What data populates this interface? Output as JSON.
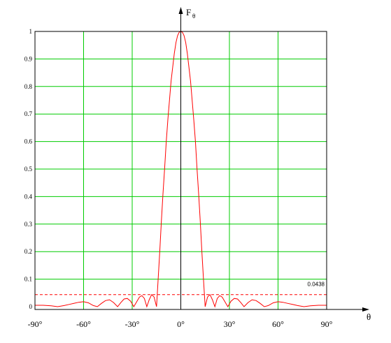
{
  "chart_data": {
    "type": "line",
    "ylabel": "F",
    "ylabel_sub": "θ",
    "xlabel": "θ",
    "xlim": [
      -90,
      90
    ],
    "ylim": [
      0,
      1
    ],
    "grid": true,
    "x_ticks": [
      -90,
      -60,
      -30,
      0,
      30,
      60,
      90
    ],
    "x_tick_labels": [
      "-90°",
      "-60°",
      "-30°",
      "0°",
      "30°",
      "60°",
      "90°"
    ],
    "y_ticks": [
      0,
      0.1,
      0.2,
      0.3,
      0.4,
      0.5,
      0.6,
      0.7,
      0.8,
      0.9,
      1
    ],
    "y_tick_labels": [
      "0",
      "0.1",
      "0.2",
      "0.3",
      "0.4",
      "0.5",
      "0.6",
      "0.7",
      "0.8",
      "0.9",
      "1"
    ],
    "colors": {
      "grid": "#00cc00",
      "curve": "#ff0000",
      "axis": "#000000",
      "frame": "#000000"
    },
    "series": [
      {
        "style": "solid",
        "x": [
          -90,
          -85,
          -80,
          -76,
          -72,
          -69,
          -66,
          -63,
          -60,
          -57,
          -54,
          -51.5,
          -49,
          -46.5,
          -44,
          -41.5,
          -39,
          -37,
          -35,
          -33,
          -31,
          -29,
          -27,
          -25.5,
          -24,
          -22.5,
          -21,
          -19.5,
          -18,
          -16.5,
          -15,
          -14,
          -13,
          -12,
          -11,
          -10,
          -9,
          -8,
          -7,
          -6,
          -5,
          -4,
          -3,
          -2,
          -1,
          0,
          1,
          2,
          3,
          4,
          5,
          6,
          7,
          8,
          9,
          10,
          11,
          12,
          13,
          14,
          15,
          16.5,
          18,
          19.5,
          21,
          22.5,
          24,
          25.5,
          27,
          29,
          31,
          33,
          35,
          37,
          39,
          41.5,
          44,
          46.5,
          49,
          51.5,
          54,
          57,
          60,
          63,
          66,
          69,
          72,
          76,
          80,
          85,
          90
        ],
        "y": [
          0.005,
          0.005,
          0.003,
          0.0,
          0.004,
          0.008,
          0.012,
          0.016,
          0.018,
          0.014,
          0.004,
          0.0,
          0.012,
          0.022,
          0.025,
          0.015,
          0.0,
          0.015,
          0.028,
          0.03,
          0.02,
          0.0,
          0.02,
          0.035,
          0.04,
          0.03,
          0.0,
          0.025,
          0.0438,
          0.035,
          0.0,
          0.1,
          0.2,
          0.31,
          0.41,
          0.5,
          0.6,
          0.68,
          0.75,
          0.82,
          0.87,
          0.92,
          0.96,
          0.985,
          0.997,
          1.0,
          0.997,
          0.985,
          0.96,
          0.92,
          0.87,
          0.82,
          0.75,
          0.68,
          0.6,
          0.5,
          0.41,
          0.31,
          0.2,
          0.1,
          0.0,
          0.035,
          0.0438,
          0.025,
          0.0,
          0.03,
          0.04,
          0.035,
          0.02,
          0.0,
          0.02,
          0.03,
          0.028,
          0.015,
          0.0,
          0.015,
          0.025,
          0.022,
          0.012,
          0.0,
          0.004,
          0.014,
          0.018,
          0.016,
          0.012,
          0.008,
          0.004,
          0.0,
          0.003,
          0.005,
          0.005
        ]
      },
      {
        "style": "dashed",
        "x": [
          -90,
          90
        ],
        "y": [
          0.0438,
          0.0438
        ]
      }
    ],
    "annotations": [
      {
        "text": "0.0438",
        "x": 90,
        "y": 0.0438
      }
    ]
  }
}
